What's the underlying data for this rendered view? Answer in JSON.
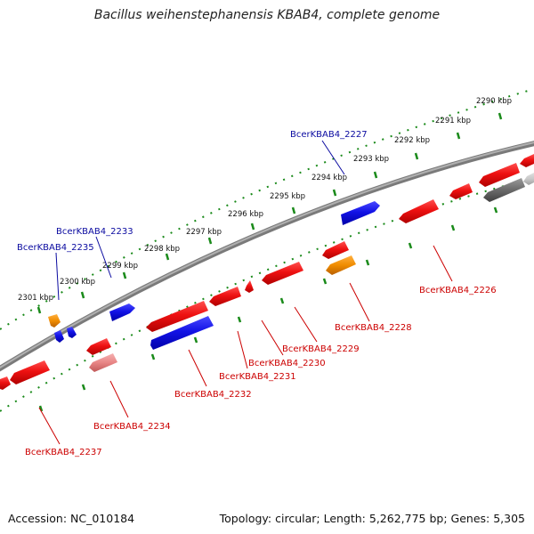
{
  "title": "Bacillus weihenstephanensis KBAB4, complete genome",
  "footer": {
    "accession": "Accession: NC_010184",
    "topology": "Topology: circular; Length: 5,262,775 bp; Genes: 5,305"
  },
  "colors": {
    "forward_gene": "#1010e0",
    "reverse_gene": "#e81010",
    "rna_gene": "#f08c00",
    "pseudo_gene": "#e88a8a",
    "other_gene": "#707070",
    "backbone": "#8a8a8a",
    "tick": "#1a8a1a",
    "forward_label": "#0a0aa0",
    "reverse_label": "#cc0000"
  },
  "kbp_labels": [
    "2290 kbp",
    "2291 kbp",
    "2292 kbp",
    "2293 kbp",
    "2294 kbp",
    "2295 kbp",
    "2296 kbp",
    "2297 kbp",
    "2298 kbp",
    "2299 kbp",
    "2300 kbp",
    "2301 kbp"
  ],
  "forward_labels": [
    "BcerKBAB4_2227",
    "BcerKBAB4_2233",
    "BcerKBAB4_2235"
  ],
  "reverse_labels": [
    "BcerKBAB4_2226",
    "BcerKBAB4_2228",
    "BcerKBAB4_2229",
    "BcerKBAB4_2230",
    "BcerKBAB4_2231",
    "BcerKBAB4_2232",
    "BcerKBAB4_2234",
    "BcerKBAB4_2237"
  ]
}
